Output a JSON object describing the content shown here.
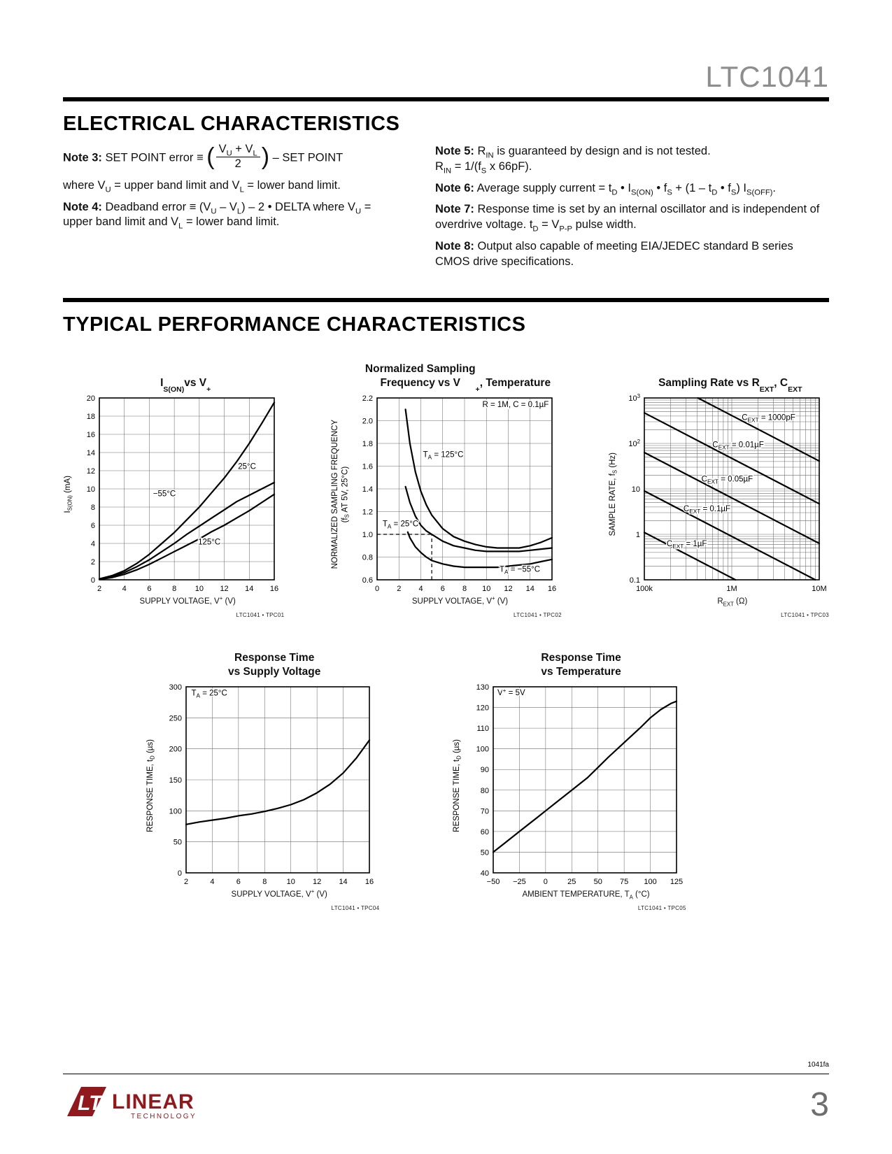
{
  "page": {
    "doc_title": "LTC1041",
    "footer_code": "1041fa",
    "page_number": "3",
    "logo": {
      "mark": "LT",
      "name": "LINEAR",
      "sub": "TECHNOLOGY"
    }
  },
  "colors": {
    "brand_red": "#8f191d",
    "header_gray": "#8d8d8d"
  },
  "electrical": {
    "title": "ELECTRICAL CHARACTERISTICS",
    "note3": {
      "lead": "**Note 3:** SET POINT error ≡ ",
      "open": "(",
      "num": "V~U~ + V~L~",
      "den": "2",
      "close": ")",
      "post": " – SET POINT"
    },
    "note3_where": "where V~U~ = upper band limit and V~L~ = lower band limit.",
    "note4": "**Note 4:** Deadband error ≡ (V~U~ – V~L~) – 2 • DELTA where V~U~ = upper band limit and V~L~ = lower band limit.",
    "notes_right": [
      "**Note 5:** R~IN~ is guaranteed by design and is not tested.\nR~IN~ = 1/(f~S~ x 66pF).",
      "**Note 6:** Average supply current = t~D~ • I~S(ON)~ • f~S~ + (1 – t~D~ • f~S~) I~S(OFF)~.",
      "**Note 7:** Response time is set by an internal oscillator and is independent of overdrive voltage. t~D~ = V~P-P~ pulse width.",
      "**Note 8:** Output also capable of meeting EIA/JEDEC standard B series CMOS drive specifications."
    ]
  },
  "typical": {
    "title": "TYPICAL PERFORMANCE CHARACTERISTICS"
  },
  "chart_data": [
    {
      "type": "line",
      "title": "I~S(ON)~ vs V^+^",
      "xlabel": "SUPPLY VOLTAGE, V^+^ (V)",
      "ylabel": "I~S(ON)~ (mA)",
      "credit": "LTC1041 • TPC01",
      "xlim": [
        2,
        16
      ],
      "ylim": [
        0,
        20
      ],
      "xticks": [
        2,
        4,
        6,
        8,
        10,
        12,
        14,
        16
      ],
      "yticks": [
        0,
        2,
        4,
        6,
        8,
        10,
        12,
        14,
        16,
        18,
        20
      ],
      "series": [
        {
          "name": "25°C",
          "points": [
            [
              2,
              0.1
            ],
            [
              3,
              0.45
            ],
            [
              4,
              1.0
            ],
            [
              5,
              1.8
            ],
            [
              6,
              2.8
            ],
            [
              7,
              4.0
            ],
            [
              8,
              5.2
            ],
            [
              9,
              6.6
            ],
            [
              10,
              8.0
            ],
            [
              11,
              9.6
            ],
            [
              12,
              11.2
            ],
            [
              13,
              13.0
            ],
            [
              14,
              15.0
            ],
            [
              15,
              17.2
            ],
            [
              16,
              19.5
            ]
          ]
        },
        {
          "name": "−55°C",
          "points": [
            [
              2,
              0.08
            ],
            [
              3,
              0.35
            ],
            [
              4,
              0.8
            ],
            [
              5,
              1.45
            ],
            [
              6,
              2.2
            ],
            [
              7,
              3.1
            ],
            [
              8,
              4.0
            ],
            [
              9,
              5.0
            ],
            [
              10,
              5.9
            ],
            [
              11,
              6.8
            ],
            [
              12,
              7.7
            ],
            [
              13,
              8.6
            ],
            [
              14,
              9.3
            ],
            [
              15,
              10.0
            ],
            [
              16,
              10.7
            ]
          ]
        },
        {
          "name": "125°C",
          "points": [
            [
              2,
              0.05
            ],
            [
              3,
              0.25
            ],
            [
              4,
              0.6
            ],
            [
              5,
              1.1
            ],
            [
              6,
              1.7
            ],
            [
              7,
              2.4
            ],
            [
              8,
              3.1
            ],
            [
              9,
              3.8
            ],
            [
              10,
              4.5
            ],
            [
              11,
              5.3
            ],
            [
              12,
              6.0
            ],
            [
              13,
              6.8
            ],
            [
              14,
              7.6
            ],
            [
              15,
              8.5
            ],
            [
              16,
              9.4
            ]
          ]
        }
      ],
      "annotations": [
        {
          "x": 13.1,
          "y": 12.2,
          "text": "25°C"
        },
        {
          "x": 6.3,
          "y": 9.2,
          "text": "−55°C"
        },
        {
          "x": 9.9,
          "y": 3.9,
          "text": "125°C"
        }
      ]
    },
    {
      "type": "line",
      "title": "Normalized Sampling\nFrequency vs V^+^, Temperature",
      "xlabel": "SUPPLY VOLTAGE, V^+^ (V)",
      "ylabel": "NORMALIZED SAMPLING FREQUENCY\n(f~S~ AT 5V, 25°C)",
      "credit": "LTC1041 • TPC02",
      "xlim": [
        0,
        16
      ],
      "ylim": [
        0.6,
        2.2
      ],
      "xticks": [
        0,
        2,
        4,
        6,
        8,
        10,
        12,
        14,
        16
      ],
      "yticks": [
        0.6,
        0.8,
        1.0,
        1.2,
        1.4,
        1.6,
        1.8,
        2.0,
        2.2
      ],
      "ytick_labels": [
        "0.6",
        "0.8",
        "1.0",
        "1.2",
        "1.4",
        "1.6",
        "1.8",
        "2.0",
        "2.2"
      ],
      "series": [
        {
          "name": "TA = 125°C",
          "points": [
            [
              2.6,
              2.1
            ],
            [
              3,
              1.8
            ],
            [
              3.5,
              1.55
            ],
            [
              4,
              1.38
            ],
            [
              4.5,
              1.26
            ],
            [
              5,
              1.17
            ],
            [
              6,
              1.05
            ],
            [
              7,
              0.98
            ],
            [
              8,
              0.94
            ],
            [
              9,
              0.91
            ],
            [
              10,
              0.89
            ],
            [
              11,
              0.88
            ],
            [
              12,
              0.88
            ],
            [
              13,
              0.88
            ],
            [
              14,
              0.9
            ],
            [
              15,
              0.93
            ],
            [
              16,
              0.97
            ]
          ]
        },
        {
          "name": "TA = 25°C",
          "points": [
            [
              2.6,
              1.42
            ],
            [
              3,
              1.28
            ],
            [
              3.5,
              1.16
            ],
            [
              4,
              1.08
            ],
            [
              4.5,
              1.03
            ],
            [
              5,
              1.0
            ],
            [
              6,
              0.94
            ],
            [
              7,
              0.9
            ],
            [
              8,
              0.88
            ],
            [
              9,
              0.86
            ],
            [
              10,
              0.85
            ],
            [
              11,
              0.85
            ],
            [
              12,
              0.85
            ],
            [
              13,
              0.85
            ],
            [
              14,
              0.86
            ],
            [
              15,
              0.87
            ],
            [
              16,
              0.88
            ]
          ]
        },
        {
          "name": "TA = −55°C",
          "points": [
            [
              2.8,
              1.02
            ],
            [
              3,
              0.97
            ],
            [
              3.5,
              0.89
            ],
            [
              4,
              0.84
            ],
            [
              4.5,
              0.8
            ],
            [
              5,
              0.77
            ],
            [
              6,
              0.74
            ],
            [
              7,
              0.72
            ],
            [
              8,
              0.71
            ],
            [
              9,
              0.71
            ],
            [
              10,
              0.71
            ],
            [
              11,
              0.71
            ],
            [
              12,
              0.72
            ],
            [
              13,
              0.73
            ],
            [
              14,
              0.74
            ],
            [
              15,
              0.76
            ],
            [
              16,
              0.78
            ]
          ]
        }
      ],
      "refs": [
        {
          "x1": 0,
          "y1": 1.0,
          "x2": 5,
          "y2": 1.0
        },
        {
          "x1": 5,
          "y1": 0.6,
          "x2": 5,
          "y2": 1.0
        }
      ],
      "annotations": [
        {
          "x": 15.7,
          "y": 2.12,
          "text": "R = 1M, C = 0.1µF",
          "anchor": "end"
        },
        {
          "x": 4.2,
          "y": 1.68,
          "text": "T~A~ = 125°C"
        },
        {
          "x": 0.5,
          "y": 1.07,
          "text": "T~A~ = 25°C"
        },
        {
          "x": 11.2,
          "y": 0.67,
          "text": "T~A~ = −55°C"
        }
      ]
    },
    {
      "type": "line",
      "xscale": "log",
      "yscale": "log",
      "title": "Sampling Rate vs R~EXT~, C~EXT~",
      "xlabel": "R~EXT~ (Ω)",
      "ylabel": "SAMPLE RATE, f~S~ (Hz)",
      "credit": "LTC1041 • TPC03",
      "xlim": [
        100000,
        10000000
      ],
      "ylim": [
        0.1,
        1000
      ],
      "xticks": [
        100000,
        1000000,
        10000000
      ],
      "xtick_labels": [
        "100k",
        "1M",
        "10M"
      ],
      "yticks": [
        1000,
        100,
        10,
        1,
        0.1
      ],
      "ytick_labels": [
        "10^3^",
        "10^2^",
        "10",
        "1",
        "0.1"
      ],
      "series": [
        {
          "name": "CEXT = 1000pF",
          "points": [
            [
              410000,
              1000
            ],
            [
              10000000,
              41
            ]
          ]
        },
        {
          "name": "CEXT = 0.01µF",
          "points": [
            [
              100000,
              470
            ],
            [
              10000000,
              4.7
            ]
          ]
        },
        {
          "name": "CEXT = 0.05µF",
          "points": [
            [
              100000,
              63
            ],
            [
              10000000,
              0.63
            ]
          ]
        },
        {
          "name": "CEXT = 0.1µF",
          "points": [
            [
              100000,
              9
            ],
            [
              9000000,
              0.1
            ]
          ]
        },
        {
          "name": "CEXT = 1µF",
          "points": [
            [
              100000,
              1.1
            ],
            [
              1100000,
              0.1
            ]
          ]
        }
      ],
      "annotations": [
        {
          "x": 1300000,
          "y": 330,
          "text": "C~EXT~ = 1000pF"
        },
        {
          "x": 600000,
          "y": 82,
          "text": "C~EXT~ = 0.01µF"
        },
        {
          "x": 450000,
          "y": 14.5,
          "text": "C~EXT~ = 0.05µF"
        },
        {
          "x": 280000,
          "y": 3.2,
          "text": "C~EXT~ = 0.1µF"
        },
        {
          "x": 180000,
          "y": 0.55,
          "text": "C~EXT~ = 1µF"
        }
      ]
    },
    {
      "type": "line",
      "title": "Response Time\nvs Supply Voltage",
      "xlabel": "SUPPLY VOLTAGE, V^+^ (V)",
      "ylabel": "RESPONSE TIME, t~D~ (µs)",
      "credit": "LTC1041 • TPC04",
      "xlim": [
        2,
        16
      ],
      "ylim": [
        0,
        300
      ],
      "xticks": [
        2,
        4,
        6,
        8,
        10,
        12,
        14,
        16
      ],
      "yticks": [
        0,
        50,
        100,
        150,
        200,
        250,
        300
      ],
      "series": [
        {
          "name": "response time",
          "points": [
            [
              2,
              78
            ],
            [
              3,
              82
            ],
            [
              4,
              85
            ],
            [
              5,
              88
            ],
            [
              6,
              92
            ],
            [
              7,
              95
            ],
            [
              8,
              99
            ],
            [
              9,
              104
            ],
            [
              10,
              110
            ],
            [
              11,
              118
            ],
            [
              12,
              129
            ],
            [
              13,
              143
            ],
            [
              14,
              161
            ],
            [
              15,
              185
            ],
            [
              16,
              214
            ]
          ]
        }
      ],
      "annotations": [
        {
          "x": 2.4,
          "y": 286,
          "text": "T~A~ = 25°C"
        }
      ]
    },
    {
      "type": "line",
      "title": "Response Time\nvs Temperature",
      "xlabel": "AMBIENT TEMPERATURE, T~A~ (°C)",
      "ylabel": "RESPONSE TIME, t~D~ (µs)",
      "credit": "LTC1041 • TPC05",
      "xlim": [
        -50,
        125
      ],
      "ylim": [
        40,
        130
      ],
      "xticks": [
        -50,
        -25,
        0,
        25,
        50,
        75,
        100,
        125
      ],
      "xtick_labels": [
        "−50",
        "−25",
        "0",
        "25",
        "50",
        "75",
        "100",
        "125"
      ],
      "yticks": [
        40,
        50,
        60,
        70,
        80,
        90,
        100,
        110,
        120,
        130
      ],
      "series": [
        {
          "name": "response time",
          "points": [
            [
              -50,
              50
            ],
            [
              -40,
              54
            ],
            [
              -25,
              60
            ],
            [
              -10,
              66
            ],
            [
              0,
              70
            ],
            [
              10,
              74
            ],
            [
              25,
              80
            ],
            [
              40,
              86
            ],
            [
              50,
              91
            ],
            [
              60,
              96
            ],
            [
              75,
              103
            ],
            [
              90,
              110
            ],
            [
              100,
              115
            ],
            [
              110,
              119
            ],
            [
              120,
              122
            ],
            [
              125,
              123
            ]
          ]
        }
      ],
      "annotations": [
        {
          "x": -46,
          "y": 126,
          "text": "V^+^ = 5V"
        }
      ]
    }
  ]
}
